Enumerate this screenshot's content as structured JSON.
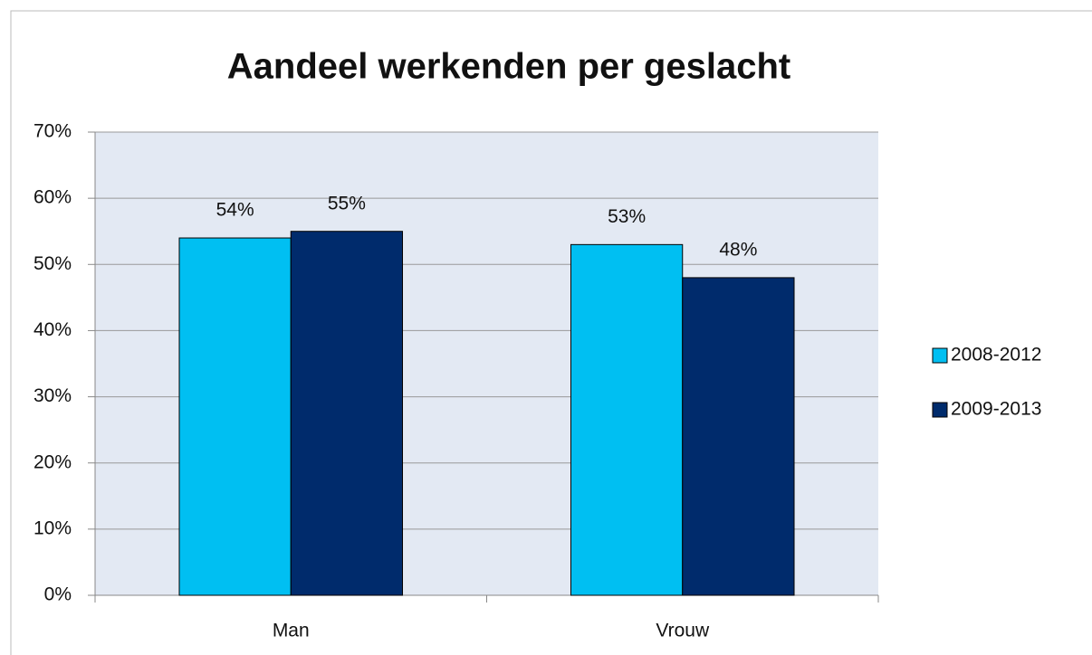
{
  "chart_data": {
    "type": "bar",
    "title": "Aandeel werkenden per geslacht",
    "categories": [
      "Man",
      "Vrouw"
    ],
    "series": [
      {
        "name": "2008-2012",
        "color": "#00bff2",
        "values": [
          54,
          53
        ],
        "value_labels": [
          "54%",
          "53%"
        ]
      },
      {
        "name": "2009-2013",
        "color": "#002b6c",
        "values": [
          55,
          48
        ],
        "value_labels": [
          "55%",
          "48%"
        ]
      }
    ],
    "ylim": [
      0,
      70
    ],
    "yticks": [
      {
        "value": 0,
        "label": "0%"
      },
      {
        "value": 10,
        "label": "10%"
      },
      {
        "value": 20,
        "label": "20%"
      },
      {
        "value": 30,
        "label": "30%"
      },
      {
        "value": 40,
        "label": "40%"
      },
      {
        "value": 50,
        "label": "50%"
      },
      {
        "value": 60,
        "label": "60%"
      },
      {
        "value": 70,
        "label": "70%"
      }
    ],
    "grid": true,
    "legend": "right"
  }
}
